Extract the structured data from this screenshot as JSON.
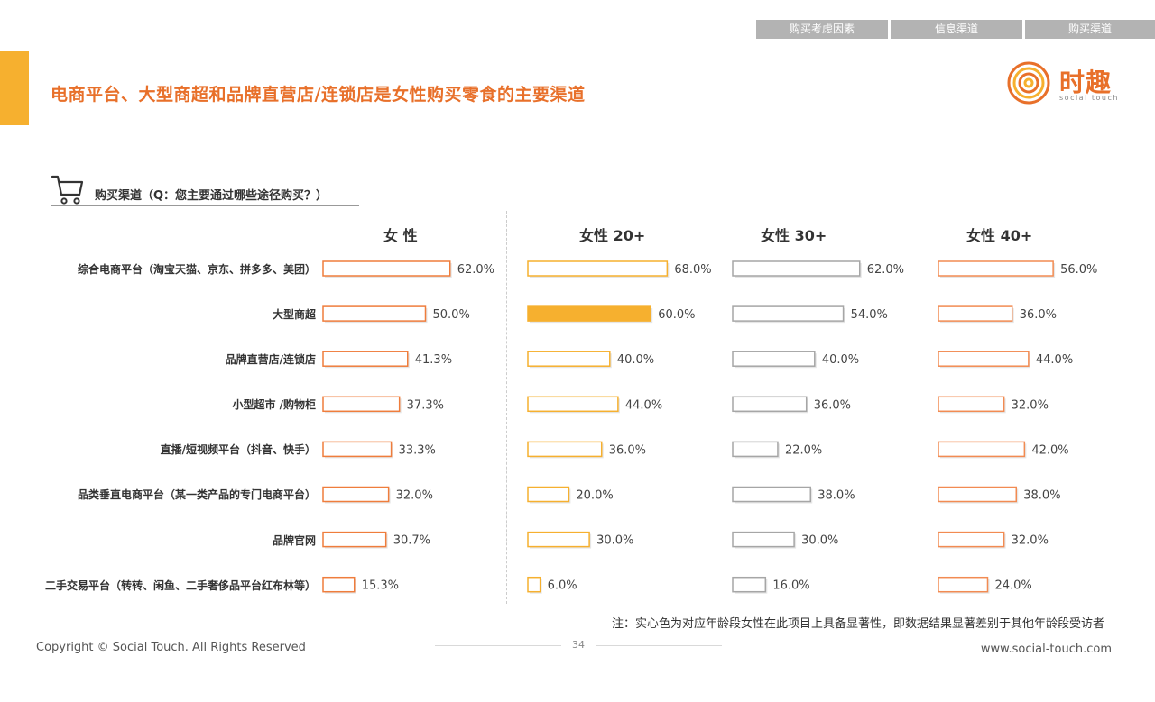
{
  "header": {
    "tabs": [
      {
        "label": "购买考虑因素",
        "active": false
      },
      {
        "label": "信息渠道",
        "active": false
      },
      {
        "label": "购买渠道",
        "active": true
      }
    ],
    "title": "电商平台、大型商超和品牌直营店/连锁店是女性购买零食的主要渠道"
  },
  "logo": {
    "cn": "时趣",
    "en": "social touch"
  },
  "question": "购买渠道（Q：您主要通过哪些途径购买？）",
  "chart_data": {
    "type": "bar",
    "orientation": "horizontal",
    "categories": [
      "综合电商平台（淘宝天猫、京东、拼多多、美团）",
      "大型商超",
      "品牌直营店/连锁店",
      "小型超市 /购物柜",
      "直播/短视频平台（抖音、快手）",
      "品类垂直电商平台（某一类产品的专门电商平台）",
      "品牌官网",
      "二手交易平台（转转、闲鱼、二手奢侈品平台红布林等）"
    ],
    "series": [
      {
        "name": "女 性",
        "values": [
          62.0,
          50.0,
          41.3,
          37.3,
          33.3,
          32.0,
          30.7,
          15.3
        ],
        "labels": [
          "62.0%",
          "50.0%",
          "41.3%",
          "37.3%",
          "33.3%",
          "32.0%",
          "30.7%",
          "15.3%"
        ],
        "color": "#ef7d3c",
        "filled": [
          false,
          false,
          false,
          false,
          false,
          false,
          false,
          false
        ]
      },
      {
        "name": "女性 20+",
        "values": [
          68.0,
          60.0,
          40.0,
          44.0,
          36.0,
          20.0,
          30.0,
          6.0
        ],
        "labels": [
          "68.0%",
          "60.0%",
          "40.0%",
          "44.0%",
          "36.0%",
          "20.0%",
          "30.0%",
          "6.0%"
        ],
        "color": "#f6b02f",
        "filled": [
          false,
          true,
          false,
          false,
          false,
          false,
          false,
          false
        ]
      },
      {
        "name": "女性 30+",
        "values": [
          62.0,
          54.0,
          40.0,
          36.0,
          22.0,
          38.0,
          30.0,
          16.0
        ],
        "labels": [
          "62.0%",
          "54.0%",
          "40.0%",
          "36.0%",
          "22.0%",
          "38.0%",
          "30.0%",
          "16.0%"
        ],
        "color": "#a6a6a6",
        "filled": [
          false,
          false,
          false,
          false,
          false,
          false,
          false,
          false
        ]
      },
      {
        "name": "女性 40+",
        "values": [
          56.0,
          36.0,
          44.0,
          32.0,
          42.0,
          38.0,
          32.0,
          24.0
        ],
        "labels": [
          "56.0%",
          "36.0%",
          "44.0%",
          "32.0%",
          "42.0%",
          "38.0%",
          "32.0%",
          "24.0%"
        ],
        "color": "#f28b52",
        "filled": [
          false,
          false,
          false,
          false,
          false,
          false,
          false,
          false
        ]
      }
    ],
    "xlim": [
      0,
      100
    ],
    "legend": "none"
  },
  "note": "注：实心色为对应年龄段女性在此项目上具备显著性，即数据结果显著差别于其他年龄段受访者",
  "footer": {
    "copyright": "Copyright © Social Touch. All Rights Reserved",
    "page": "34",
    "url": "www.social-touch.com"
  }
}
